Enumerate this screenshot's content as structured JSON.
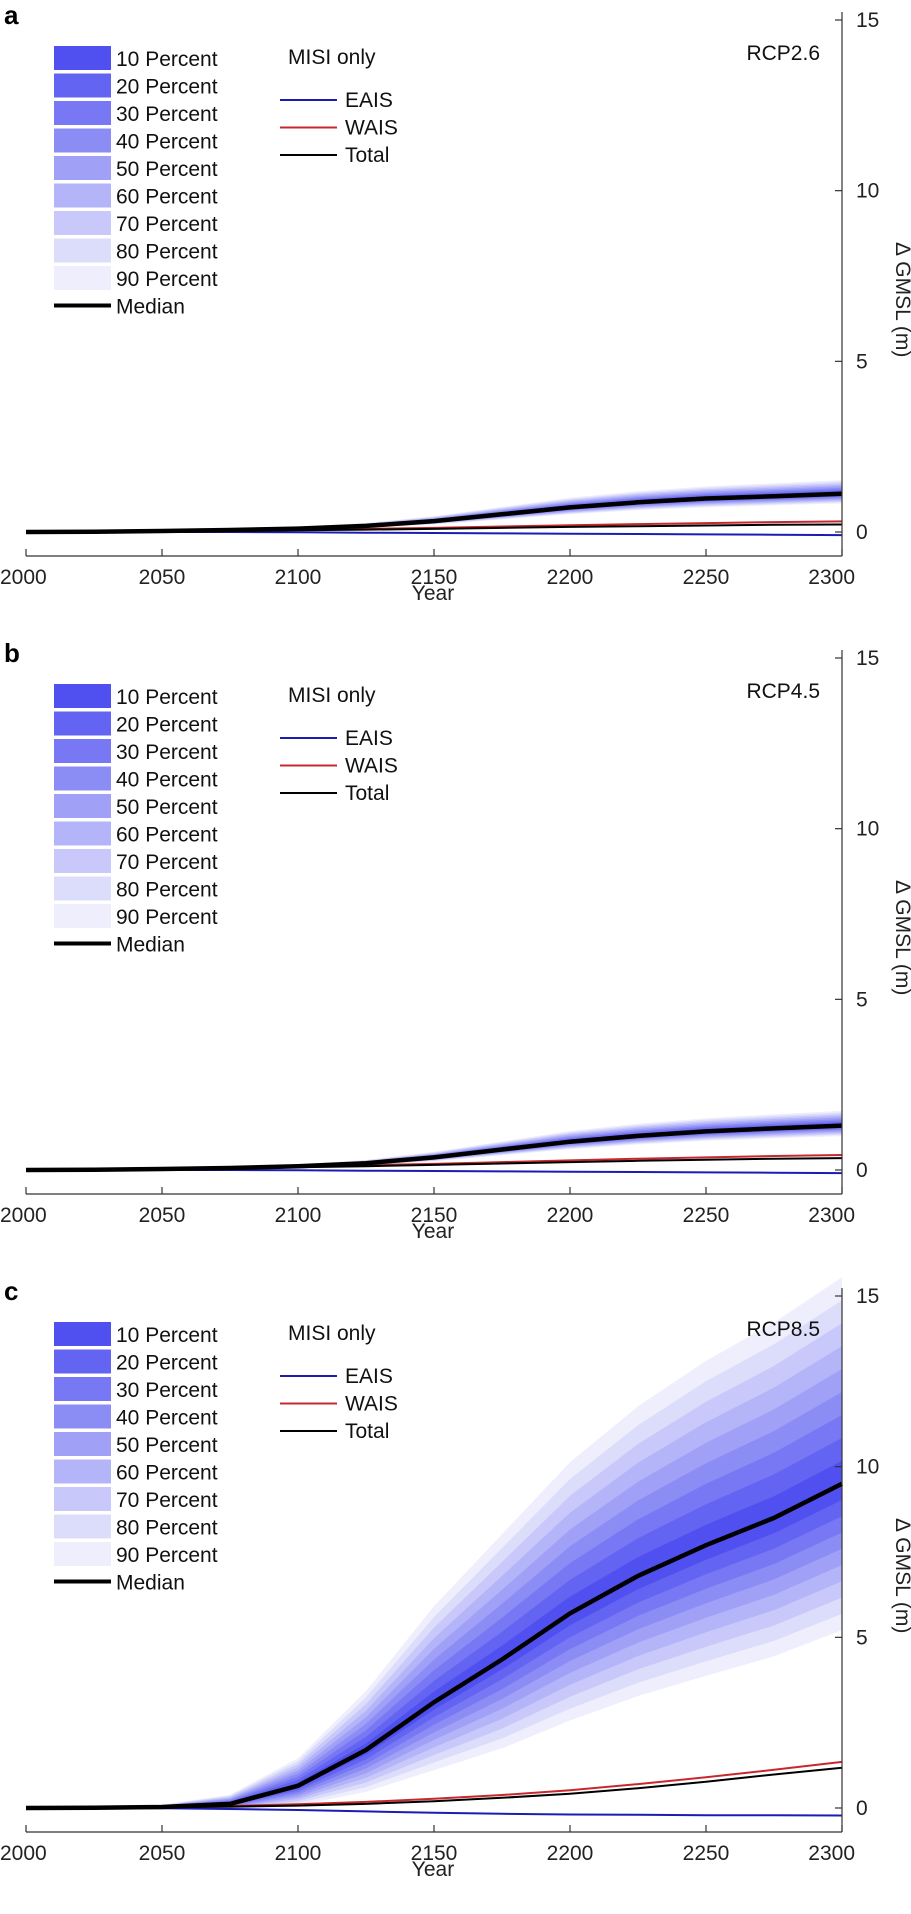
{
  "chart_data": [
    {
      "type": "area",
      "panel_label": "a",
      "scenario": "RCP2.6",
      "xlabel": "Year",
      "ylabel": "∆ GMSL (m)",
      "xlim": [
        2000,
        2300
      ],
      "ylim": [
        -1,
        15
      ],
      "xticks": [
        "2000",
        "2050",
        "2100",
        "2150",
        "2200",
        "2250",
        "2300"
      ],
      "yticks": [
        "0",
        "5",
        "10",
        "15"
      ],
      "y_axis_side": "right",
      "grid": false,
      "legend_percent": {
        "entries": [
          "10 Percent",
          "20 Percent",
          "30 Percent",
          "40 Percent",
          "50 Percent",
          "60 Percent",
          "70 Percent",
          "80 Percent",
          "90 Percent"
        ],
        "median_label": "Median",
        "placement": "top-left"
      },
      "legend_misi": {
        "title": "MISI only",
        "entries": [
          "EAIS",
          "WAIS",
          "Total"
        ],
        "placement": "top-center"
      },
      "x": [
        2000,
        2025,
        2050,
        2075,
        2100,
        2125,
        2150,
        2175,
        2200,
        2225,
        2250,
        2275,
        2300
      ],
      "median": [
        0,
        0.01,
        0.03,
        0.06,
        0.1,
        0.18,
        0.32,
        0.52,
        0.72,
        0.87,
        0.98,
        1.05,
        1.12
      ],
      "spread": [
        0,
        0.01,
        0.02,
        0.03,
        0.05,
        0.08,
        0.13,
        0.2,
        0.26,
        0.3,
        0.33,
        0.35,
        0.37
      ],
      "misi_series": [
        {
          "name": "EAIS",
          "color": "#1c1cb4",
          "values": [
            0,
            0,
            0,
            0,
            -0.01,
            -0.02,
            -0.03,
            -0.04,
            -0.05,
            -0.06,
            -0.07,
            -0.08,
            -0.09
          ]
        },
        {
          "name": "WAIS",
          "color": "#c8282d",
          "values": [
            0,
            0.01,
            0.02,
            0.04,
            0.06,
            0.09,
            0.12,
            0.16,
            0.2,
            0.23,
            0.26,
            0.29,
            0.31
          ]
        },
        {
          "name": "Total",
          "color": "#000000",
          "values": [
            0,
            0.01,
            0.02,
            0.03,
            0.05,
            0.07,
            0.09,
            0.12,
            0.15,
            0.17,
            0.19,
            0.21,
            0.22
          ]
        }
      ]
    },
    {
      "type": "area",
      "panel_label": "b",
      "scenario": "RCP4.5",
      "xlabel": "Year",
      "ylabel": "∆ GMSL (m)",
      "xlim": [
        2000,
        2300
      ],
      "ylim": [
        -1,
        15
      ],
      "xticks": [
        "2000",
        "2050",
        "2100",
        "2150",
        "2200",
        "2250",
        "2300"
      ],
      "yticks": [
        "0",
        "5",
        "10",
        "15"
      ],
      "y_axis_side": "right",
      "grid": false,
      "legend_percent": {
        "entries": [
          "10 Percent",
          "20 Percent",
          "30 Percent",
          "40 Percent",
          "50 Percent",
          "60 Percent",
          "70 Percent",
          "80 Percent",
          "90 Percent"
        ],
        "median_label": "Median",
        "placement": "top-left"
      },
      "legend_misi": {
        "title": "MISI only",
        "entries": [
          "EAIS",
          "WAIS",
          "Total"
        ],
        "placement": "top-center"
      },
      "x": [
        2000,
        2025,
        2050,
        2075,
        2100,
        2125,
        2150,
        2175,
        2200,
        2225,
        2250,
        2275,
        2300
      ],
      "median": [
        0,
        0.01,
        0.03,
        0.06,
        0.11,
        0.2,
        0.37,
        0.6,
        0.83,
        1.0,
        1.13,
        1.22,
        1.3
      ],
      "spread": [
        0,
        0.01,
        0.02,
        0.03,
        0.05,
        0.09,
        0.15,
        0.22,
        0.29,
        0.33,
        0.36,
        0.38,
        0.4
      ],
      "misi_series": [
        {
          "name": "EAIS",
          "color": "#1c1cb4",
          "values": [
            0,
            0,
            0,
            0,
            -0.01,
            -0.02,
            -0.03,
            -0.04,
            -0.05,
            -0.06,
            -0.07,
            -0.08,
            -0.09
          ]
        },
        {
          "name": "WAIS",
          "color": "#c8282d",
          "values": [
            0,
            0.02,
            0.04,
            0.07,
            0.1,
            0.14,
            0.18,
            0.23,
            0.28,
            0.33,
            0.37,
            0.41,
            0.44
          ]
        },
        {
          "name": "Total",
          "color": "#000000",
          "values": [
            0,
            0.01,
            0.03,
            0.05,
            0.08,
            0.11,
            0.15,
            0.19,
            0.23,
            0.27,
            0.3,
            0.33,
            0.35
          ]
        }
      ]
    },
    {
      "type": "area",
      "panel_label": "c",
      "scenario": "RCP8.5",
      "xlabel": "Year",
      "ylabel": "∆ GMSL (m)",
      "xlim": [
        2000,
        2300
      ],
      "ylim": [
        -1,
        15
      ],
      "xticks": [
        "2000",
        "2050",
        "2100",
        "2150",
        "2200",
        "2250",
        "2300"
      ],
      "yticks": [
        "0",
        "5",
        "10",
        "15"
      ],
      "y_axis_side": "right",
      "grid": false,
      "legend_percent": {
        "entries": [
          "10 Percent",
          "20 Percent",
          "30 Percent",
          "40 Percent",
          "50 Percent",
          "60 Percent",
          "70 Percent",
          "80 Percent",
          "90 Percent"
        ],
        "median_label": "Median",
        "placement": "top-left"
      },
      "legend_misi": {
        "title": "MISI only",
        "entries": [
          "EAIS",
          "WAIS",
          "Total"
        ],
        "placement": "top-center"
      },
      "x": [
        2000,
        2025,
        2050,
        2075,
        2100,
        2125,
        2150,
        2175,
        2200,
        2225,
        2250,
        2275,
        2300
      ],
      "median": [
        0,
        0.01,
        0.03,
        0.12,
        0.65,
        1.7,
        3.1,
        4.35,
        5.7,
        6.8,
        7.7,
        8.5,
        9.5
      ],
      "spread": [
        0,
        0.02,
        0.06,
        0.25,
        0.75,
        1.6,
        2.6,
        3.4,
        4.1,
        4.6,
        5.0,
        5.3,
        5.6
      ],
      "misi_series": [
        {
          "name": "EAIS",
          "color": "#1c1cb4",
          "values": [
            0,
            0,
            -0.01,
            -0.03,
            -0.06,
            -0.1,
            -0.14,
            -0.17,
            -0.19,
            -0.2,
            -0.21,
            -0.21,
            -0.22
          ]
        },
        {
          "name": "WAIS",
          "color": "#c8282d",
          "values": [
            0,
            0.01,
            0.03,
            0.06,
            0.11,
            0.18,
            0.27,
            0.38,
            0.52,
            0.7,
            0.9,
            1.12,
            1.35
          ]
        },
        {
          "name": "Total",
          "color": "#000000",
          "values": [
            0,
            0.01,
            0.02,
            0.04,
            0.07,
            0.12,
            0.2,
            0.3,
            0.42,
            0.58,
            0.77,
            0.98,
            1.18
          ]
        }
      ]
    }
  ]
}
